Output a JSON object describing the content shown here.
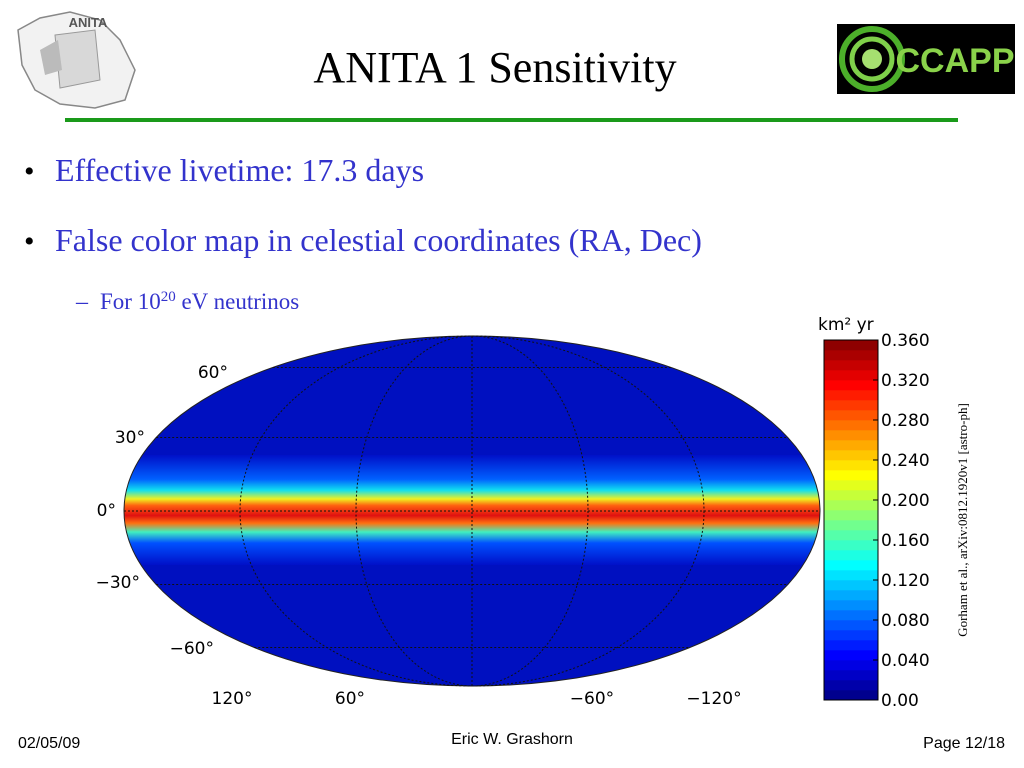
{
  "header": {
    "title": "ANITA 1 Sensitivity",
    "logo_left": "ANITA",
    "logo_right": "CCAPP"
  },
  "bullets": [
    "Effective livetime: 17.3 days",
    "False color map in celestial coordinates (RA, Dec)"
  ],
  "sub_bullet": {
    "text_before": "For 10",
    "superscript": "20",
    "text_after": " eV neutrinos"
  },
  "map": {
    "lat_labels": [
      "60°",
      "30°",
      "0°",
      "−30°",
      "−60°"
    ],
    "lon_labels": [
      "120°",
      "60°",
      "−60°",
      "−120°"
    ]
  },
  "colorbar": {
    "label": "km² yr",
    "clim": [
      0,
      0.36
    ],
    "ticks": [
      {
        "value": 0.36,
        "label": "0.360"
      },
      {
        "value": 0.32,
        "label": "0.320"
      },
      {
        "value": 0.28,
        "label": "0.280"
      },
      {
        "value": 0.24,
        "label": "0.240"
      },
      {
        "value": 0.2,
        "label": "0.200"
      },
      {
        "value": 0.16,
        "label": "0.160"
      },
      {
        "value": 0.12,
        "label": "0.120"
      },
      {
        "value": 0.08,
        "label": "0.080"
      },
      {
        "value": 0.04,
        "label": "0.040"
      },
      {
        "value": 0,
        "label": "0.00"
      }
    ]
  },
  "citation": "Gorham et al., arXiv:0812.1920v1  [astro-ph]",
  "footer": {
    "date": "02/05/09",
    "author": "Eric W. Grashorn",
    "page": "Page 12/18"
  }
}
